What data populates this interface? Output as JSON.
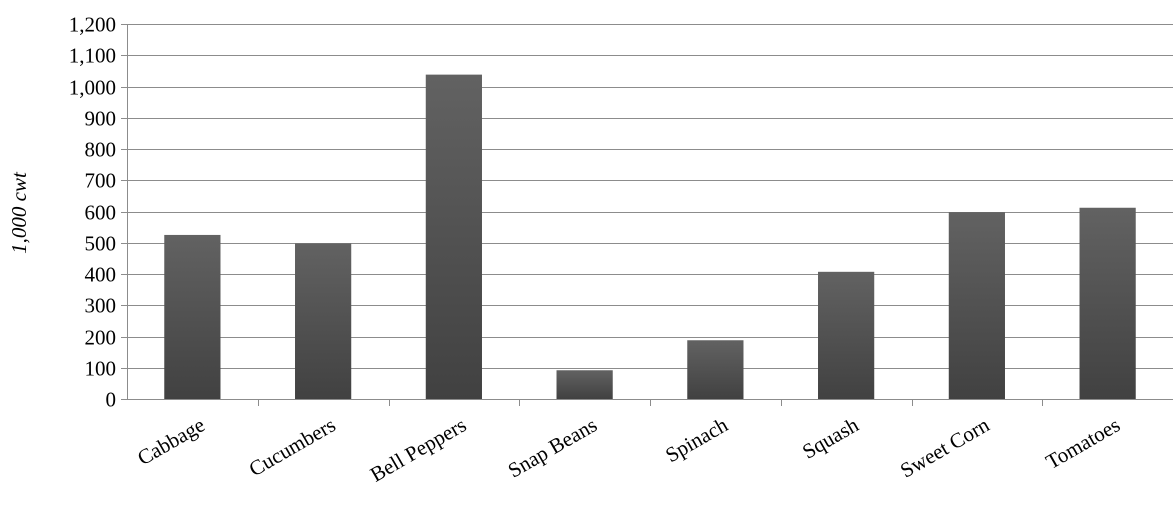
{
  "chart_data": {
    "type": "bar",
    "categories": [
      "Cabbage",
      "Cucumbers",
      "Bell Peppers",
      "Snap Beans",
      "Spinach",
      "Squash",
      "Sweet Corn",
      "Tomatoes"
    ],
    "values": [
      525,
      498,
      1038,
      92,
      188,
      407,
      598,
      612
    ],
    "title": "",
    "xlabel": "",
    "ylabel": "1,000 cwt",
    "ylim": [
      0,
      1200
    ],
    "yticks": [
      0,
      100,
      200,
      300,
      400,
      500,
      600,
      700,
      800,
      900,
      1000,
      1100,
      1200
    ],
    "ytick_labels": [
      "0",
      "100",
      "200",
      "300",
      "400",
      "500",
      "600",
      "700",
      "800",
      "900",
      "1,000",
      "1,100",
      "1,200"
    ],
    "grid": true,
    "bar_color": "#555555",
    "bar_color_light": "#626262",
    "bar_color_dark": "#414141"
  }
}
